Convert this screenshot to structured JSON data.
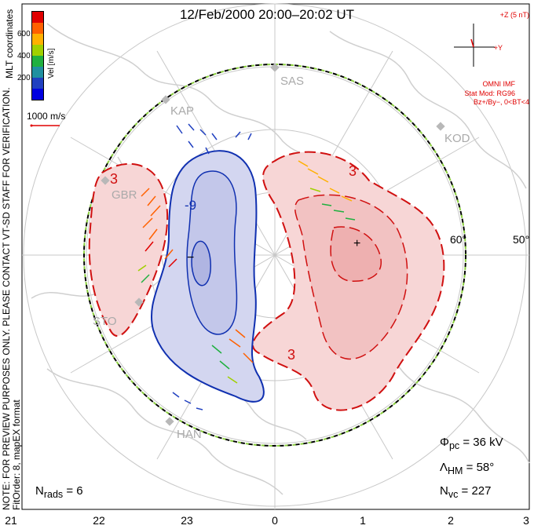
{
  "title": "12/Feb/2000 20:00–20:02 UT",
  "mlt_axis": [
    "21",
    "22",
    "23",
    "0",
    "1",
    "2",
    "3"
  ],
  "latitude_labels": [
    "60°",
    "50°"
  ],
  "stations": [
    "SAS",
    "KAP",
    "KOD",
    "GBR",
    "STO",
    "HAN"
  ],
  "imf": {
    "scale_label": "+Z (5 nT)",
    "y_label": "+Y",
    "source": "OMNI IMF",
    "model": "Stat Mod: RG96",
    "condition": "Bz+/By−, 0<BT<4"
  },
  "colorbar": {
    "title": "Vel [m/s]",
    "ticks": [
      "600",
      "400",
      "200"
    ],
    "colors": [
      "#e00000",
      "#ff6000",
      "#ffb000",
      "#a0d000",
      "#20b040",
      "#2090a0",
      "#2040c0",
      "#0000e0"
    ]
  },
  "coordinates_label": "MLT coordinates",
  "vector_scale": "1000 m/s",
  "side_note": {
    "line1": "NOTE: FOR PREVIEW PURPOSES ONLY. PLEASE CONTACT VT-SD STAFF FOR VERIFICATION.",
    "line2": "FitOrder: 8, mapEX format"
  },
  "stats": {
    "phi_symbol": "Φ",
    "phi_sub": "pc",
    "phi_value": "= 36 kV",
    "lambda_symbol": "Λ",
    "lambda_sub": "HM",
    "lambda_value": "= 58°",
    "nvc_symbol": "N",
    "nvc_sub": "vc",
    "nvc_value": "= 227",
    "nrads_symbol": "N",
    "nrads_sub": "rads",
    "nrads_value": "= 6"
  },
  "contour_labels": [
    "-9",
    "3",
    "3",
    "3",
    "−",
    "+"
  ],
  "colors": {
    "positive": "#d01010",
    "negative": "#1030b0",
    "positive_fill": "#f7d6d6",
    "negative_fill": "#d3d6f0",
    "grid": "#c8c8c8",
    "coast": "#cfcfcf"
  }
}
